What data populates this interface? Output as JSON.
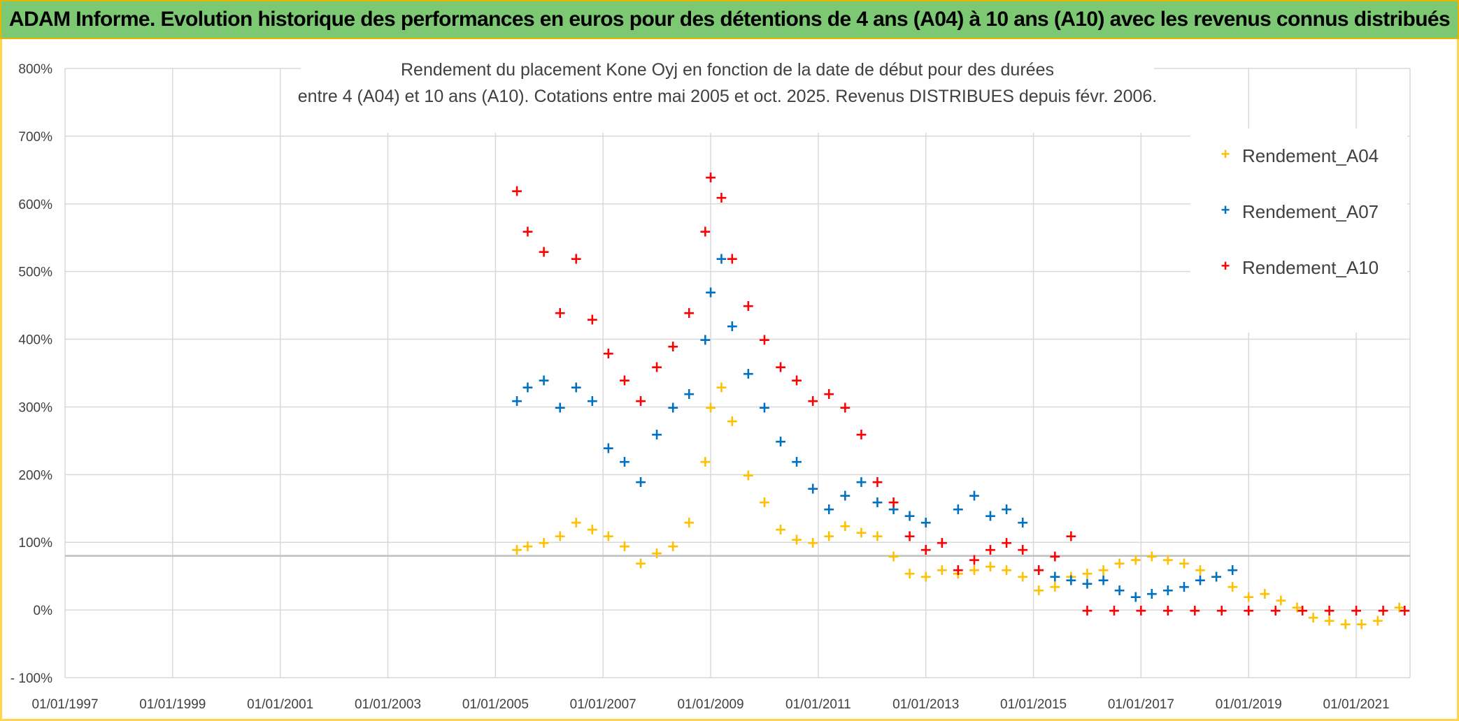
{
  "header": {
    "banner_title": "ADAM Informe. Evolution historique des performances en euros pour des détentions de 4 ans (A04) à 10 ans (A10) avec les revenus connus distribués"
  },
  "colors": {
    "banner_bg": "#7dc873",
    "banner_border": "#e8b400",
    "A04": "#ffc000",
    "A07": "#0070c0",
    "A10": "#ff0000",
    "grid": "#d9d9d9",
    "reference_line": "#bfbfbf"
  },
  "chart_data": {
    "type": "scatter",
    "title_lines": [
      "Rendement du placement Kone Oyj en fonction de la date de début pour des durées",
      "entre 4 (A04) et 10 ans (A10). Cotations entre mai 2005 et oct. 2025. Revenus DISTRIBUES depuis févr. 2006."
    ],
    "xlabel": "",
    "ylabel": "",
    "x_axis": {
      "type": "date",
      "min": "1997-01-01",
      "max": "2022-01-01",
      "tick_labels": [
        "01/01/1997",
        "01/01/1999",
        "01/01/2001",
        "01/01/2003",
        "01/01/2005",
        "01/01/2007",
        "01/01/2009",
        "01/01/2011",
        "01/01/2013",
        "01/01/2015",
        "01/01/2017",
        "01/01/2019",
        "01/01/2021"
      ]
    },
    "y_axis": {
      "min": -100,
      "max": 800,
      "tick_values": [
        -100,
        0,
        100,
        200,
        300,
        400,
        500,
        600,
        700,
        800
      ],
      "tick_labels": [
        "- 100%",
        "0%",
        "100%",
        "200%",
        "300%",
        "400%",
        "500%",
        "600%",
        "700%",
        "800%"
      ]
    },
    "grid": true,
    "reference_line_y": 80,
    "legend_position": "top-right",
    "marker": "+",
    "series": [
      {
        "name": "Rendement_A04",
        "color": "#ffc000",
        "x": [
          2005.4,
          2005.6,
          2005.9,
          2006.2,
          2006.5,
          2006.8,
          2007.1,
          2007.4,
          2007.7,
          2008.0,
          2008.3,
          2008.6,
          2008.9,
          2009.0,
          2009.2,
          2009.4,
          2009.7,
          2010.0,
          2010.3,
          2010.6,
          2010.9,
          2011.2,
          2011.5,
          2011.8,
          2012.1,
          2012.4,
          2012.7,
          2013.0,
          2013.3,
          2013.6,
          2013.9,
          2014.2,
          2014.5,
          2014.8,
          2015.1,
          2015.4,
          2015.7,
          2016.0,
          2016.3,
          2016.6,
          2016.9,
          2017.2,
          2017.5,
          2017.8,
          2018.1,
          2018.4,
          2018.7,
          2019.0,
          2019.3,
          2019.6,
          2019.9,
          2020.2,
          2020.5,
          2020.8,
          2021.1,
          2021.4,
          2021.8
        ],
        "y": [
          90,
          95,
          100,
          110,
          130,
          120,
          110,
          95,
          70,
          85,
          95,
          130,
          220,
          300,
          330,
          280,
          200,
          160,
          120,
          105,
          100,
          110,
          125,
          115,
          110,
          80,
          55,
          50,
          60,
          55,
          60,
          65,
          60,
          50,
          30,
          35,
          50,
          55,
          60,
          70,
          75,
          80,
          75,
          70,
          60,
          50,
          35,
          20,
          25,
          15,
          5,
          -10,
          -15,
          -20,
          -20,
          -15,
          5
        ]
      },
      {
        "name": "Rendement_A07",
        "color": "#0070c0",
        "x": [
          2005.4,
          2005.6,
          2005.9,
          2006.2,
          2006.5,
          2006.8,
          2007.1,
          2007.4,
          2007.7,
          2008.0,
          2008.3,
          2008.6,
          2008.9,
          2009.0,
          2009.2,
          2009.4,
          2009.7,
          2010.0,
          2010.3,
          2010.6,
          2010.9,
          2011.2,
          2011.5,
          2011.8,
          2012.1,
          2012.4,
          2012.7,
          2013.0,
          2013.3,
          2013.6,
          2013.9,
          2014.2,
          2014.5,
          2014.8,
          2015.1,
          2015.4,
          2015.7,
          2016.0,
          2016.3,
          2016.6,
          2016.9,
          2017.2,
          2017.5,
          2017.8,
          2018.1,
          2018.4,
          2018.7
        ],
        "y": [
          310,
          330,
          340,
          300,
          330,
          310,
          240,
          220,
          190,
          260,
          300,
          320,
          400,
          470,
          520,
          420,
          350,
          300,
          250,
          220,
          180,
          150,
          170,
          190,
          160,
          150,
          140,
          130,
          100,
          150,
          170,
          140,
          150,
          130,
          60,
          50,
          45,
          40,
          45,
          30,
          20,
          25,
          30,
          35,
          45,
          50,
          60
        ]
      },
      {
        "name": "Rendement_A10",
        "color": "#ff0000",
        "x": [
          2005.4,
          2005.6,
          2005.9,
          2006.2,
          2006.5,
          2006.8,
          2007.1,
          2007.4,
          2007.7,
          2008.0,
          2008.3,
          2008.6,
          2008.9,
          2009.0,
          2009.2,
          2009.4,
          2009.7,
          2010.0,
          2010.3,
          2010.6,
          2010.9,
          2011.2,
          2011.5,
          2011.8,
          2012.1,
          2012.4,
          2012.7,
          2013.0,
          2013.3,
          2013.6,
          2013.9,
          2014.2,
          2014.5,
          2014.8,
          2015.1,
          2015.4,
          2015.7,
          2016.0,
          2016.5,
          2017.0,
          2017.5,
          2018.0,
          2018.5,
          2019.0,
          2019.5,
          2020.0,
          2020.5,
          2021.0,
          2021.5,
          2021.9
        ],
        "y": [
          620,
          560,
          530,
          440,
          520,
          430,
          380,
          340,
          310,
          360,
          390,
          440,
          560,
          640,
          610,
          520,
          450,
          400,
          360,
          340,
          310,
          320,
          300,
          260,
          190,
          160,
          110,
          90,
          100,
          60,
          75,
          90,
          100,
          90,
          60,
          80,
          110,
          0,
          0,
          0,
          0,
          0,
          0,
          0,
          0,
          0,
          0,
          0,
          0,
          0
        ]
      }
    ]
  }
}
